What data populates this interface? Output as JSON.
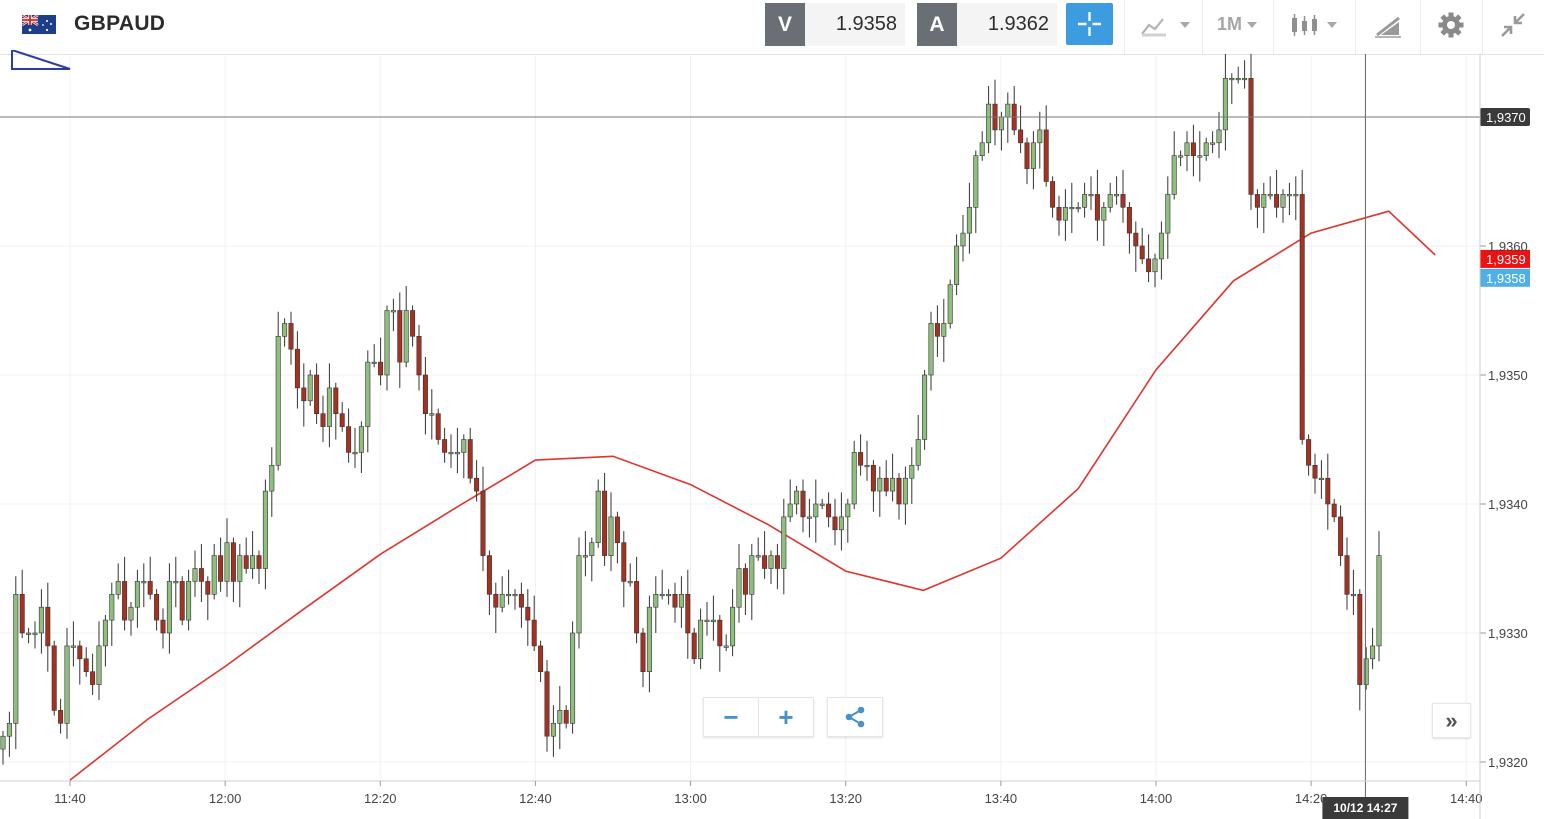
{
  "header": {
    "flag_icon": "gb-au-flag-icon",
    "symbol": "GBPAUD",
    "bid": {
      "label": "V",
      "value": "1.9358"
    },
    "ask": {
      "label": "A",
      "value": "1.9362"
    },
    "timeframe": "1M",
    "tools": [
      "crosshair-icon",
      "chart-type-icon",
      "timeframe-dropdown",
      "candle-style-icon",
      "drawing-icon",
      "gear-icon",
      "collapse-icon"
    ]
  },
  "colors": {
    "bull": "#8fbf7f",
    "bear": "#a33222",
    "ma": "#e0332b",
    "accent": "#3d9be0",
    "last_price": "#ee1111"
  },
  "chart_data": {
    "type": "candlestick",
    "symbol": "GBPAUD",
    "interval": "1m",
    "x_ticks": [
      "11:40",
      "12:00",
      "12:20",
      "12:40",
      "13:00",
      "13:20",
      "13:40",
      "14:00",
      "14:20",
      "14:40"
    ],
    "y_ticks": [
      "1,9320",
      "1,9330",
      "1,9340",
      "1,9350",
      "1,9360"
    ],
    "ylim": [
      1.9319,
      1.9375
    ],
    "horizontal_line": {
      "label": "1,9370",
      "value": 1.937
    },
    "crosshair": {
      "label": "10/12 14:27",
      "time": "14:27"
    },
    "last_price": {
      "label": "1,9358",
      "value": 1.9358
    },
    "bid_marker": {
      "label": "1,9359",
      "value": 1.9359
    },
    "start_time": "11:40",
    "close": [
      1.9322,
      1.9323,
      1.9333,
      1.933,
      1.933,
      1.933,
      1.9332,
      1.9329,
      1.9324,
      1.9323,
      1.9329,
      1.9329,
      1.9328,
      1.9327,
      1.9326,
      1.9329,
      1.9331,
      1.9333,
      1.9334,
      1.9331,
      1.9332,
      1.9334,
      1.9334,
      1.9333,
      1.9331,
      1.933,
      1.9334,
      1.9334,
      1.9331,
      1.9334,
      1.9335,
      1.9334,
      1.9333,
      1.9336,
      1.9334,
      1.9337,
      1.9334,
      1.9336,
      1.9335,
      1.9336,
      1.9335,
      1.9341,
      1.9343,
      1.9353,
      1.9354,
      1.9352,
      1.9349,
      1.9348,
      1.935,
      1.9347,
      1.9346,
      1.9349,
      1.9347,
      1.9346,
      1.9344,
      1.9344,
      1.9346,
      1.9351,
      1.9351,
      1.935,
      1.9355,
      1.9355,
      1.9351,
      1.9355,
      1.9353,
      1.935,
      1.9347,
      1.9347,
      1.9345,
      1.9344,
      1.9344,
      1.9344,
      1.9345,
      1.9342,
      1.9341,
      1.9336,
      1.9333,
      1.9332,
      1.9333,
      1.9333,
      1.9333,
      1.9332,
      1.9331,
      1.9329,
      1.9327,
      1.9322,
      1.9323,
      1.9324,
      1.9323,
      1.933,
      1.9336,
      1.9336,
      1.9337,
      1.9341,
      1.9336,
      1.9339,
      1.9337,
      1.9334,
      1.9334,
      1.933,
      1.9327,
      1.9332,
      1.9333,
      1.9333,
      1.9333,
      1.9332,
      1.9333,
      1.933,
      1.9328,
      1.9331,
      1.9331,
      1.9331,
      1.9329,
      1.9329,
      1.9332,
      1.9335,
      1.9333,
      1.9336,
      1.9336,
      1.9335,
      1.9336,
      1.9335,
      1.9339,
      1.934,
      1.9341,
      1.9339,
      1.9339,
      1.934,
      1.934,
      1.9339,
      1.9338,
      1.9339,
      1.934,
      1.9344,
      1.9343,
      1.9343,
      1.9341,
      1.9342,
      1.9341,
      1.9342,
      1.934,
      1.9342,
      1.9343,
      1.9345,
      1.935,
      1.9354,
      1.9353,
      1.9354,
      1.9357,
      1.936,
      1.9361,
      1.9363,
      1.9367,
      1.9368,
      1.9371,
      1.9369,
      1.937,
      1.9371,
      1.9369,
      1.9368,
      1.9366,
      1.9368,
      1.9369,
      1.9365,
      1.9363,
      1.9362,
      1.9363,
      1.9363,
      1.9363,
      1.9364,
      1.9364,
      1.9362,
      1.9363,
      1.9364,
      1.9364,
      1.9363,
      1.9361,
      1.936,
      1.9359,
      1.9358,
      1.9359,
      1.9361,
      1.9364,
      1.9367,
      1.9367,
      1.9368,
      1.9367,
      1.9367,
      1.9368,
      1.9368,
      1.9369,
      1.9373,
      1.9373,
      1.9373,
      1.9373,
      1.9364,
      1.9363,
      1.9364,
      1.9364,
      1.9363,
      1.9364,
      1.9364,
      1.9364,
      1.9345,
      1.9343,
      1.9342,
      1.9342,
      1.934,
      1.9339,
      1.9336,
      1.9333,
      1.9333,
      1.9326,
      1.9328,
      1.9329,
      1.9336
    ],
    "ma_series": [
      {
        "time": "11:40",
        "value": 1.93186
      },
      {
        "time": "11:50",
        "value": 1.93233
      },
      {
        "time": "12:00",
        "value": 1.93274
      },
      {
        "time": "12:10",
        "value": 1.93318
      },
      {
        "time": "12:20",
        "value": 1.93361
      },
      {
        "time": "12:30",
        "value": 1.93398
      },
      {
        "time": "12:40",
        "value": 1.93434
      },
      {
        "time": "12:50",
        "value": 1.93437
      },
      {
        "time": "13:00",
        "value": 1.93415
      },
      {
        "time": "13:10",
        "value": 1.93384
      },
      {
        "time": "13:20",
        "value": 1.93348
      },
      {
        "time": "13:30",
        "value": 1.93333
      },
      {
        "time": "13:40",
        "value": 1.93358
      },
      {
        "time": "13:50",
        "value": 1.93412
      },
      {
        "time": "14:00",
        "value": 1.93504
      },
      {
        "time": "14:10",
        "value": 1.93573
      },
      {
        "time": "14:20",
        "value": 1.9361
      },
      {
        "time": "14:30",
        "value": 1.93627
      },
      {
        "time": "14:36",
        "value": 1.93593
      }
    ]
  },
  "controls": {
    "zoom_out": "−",
    "zoom_in": "+",
    "share_icon": "share-icon",
    "forward": "»"
  }
}
